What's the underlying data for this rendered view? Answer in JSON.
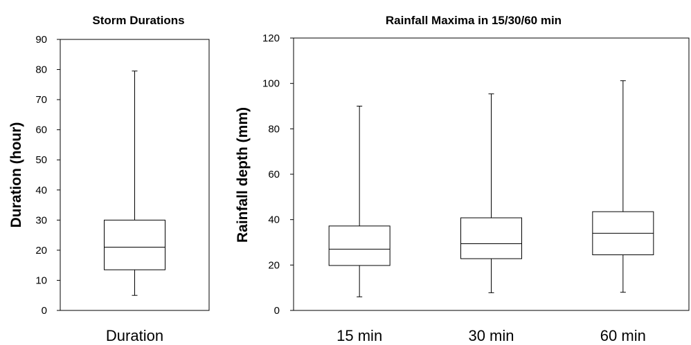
{
  "chart_data": [
    {
      "type": "box",
      "title": "Storm Durations",
      "xlabel": "",
      "ylabel": "Duration (hour)",
      "ylim": [
        0,
        90
      ],
      "yticks": [
        0,
        10,
        20,
        30,
        40,
        50,
        60,
        70,
        80,
        90
      ],
      "grid": false,
      "categories": [
        "Duration"
      ],
      "boxes": [
        {
          "category": "Duration",
          "min": 5,
          "q1": 13.5,
          "median": 21,
          "q3": 30,
          "max": 79.5
        }
      ]
    },
    {
      "type": "box",
      "title": "Rainfall  Maxima in 15/30/60 min",
      "xlabel": "",
      "ylabel": "Rainfall depth (mm)",
      "ylim": [
        0,
        120
      ],
      "yticks": [
        0,
        20,
        40,
        60,
        80,
        100,
        120
      ],
      "grid": false,
      "categories": [
        "15 min",
        "30 min",
        "60 min"
      ],
      "boxes": [
        {
          "category": "15 min",
          "min": 6,
          "q1": 19.8,
          "median": 27,
          "q3": 37.2,
          "max": 90
        },
        {
          "category": "30 min",
          "min": 7.8,
          "q1": 22.8,
          "median": 29.4,
          "q3": 40.8,
          "max": 95.4
        },
        {
          "category": "60 min",
          "min": 8,
          "q1": 24.5,
          "median": 34,
          "q3": 43.5,
          "max": 101.2
        }
      ]
    }
  ]
}
